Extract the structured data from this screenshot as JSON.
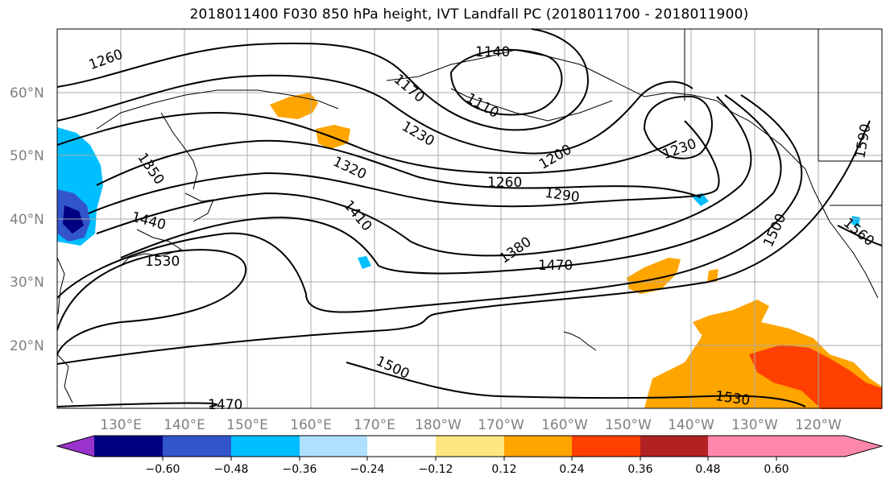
{
  "title": "2018011400 F030 850 hPa height, IVT Landfall PC (2018011700 - 2018011900)",
  "lat_labels": [
    "60°N",
    "50°N",
    "40°N",
    "30°N",
    "20°N"
  ],
  "lon_labels": [
    "130°E",
    "140°E",
    "150°E",
    "160°E",
    "170°E",
    "180°W",
    "170°W",
    "160°W",
    "150°W",
    "140°W",
    "130°W",
    "120°W"
  ],
  "contour_labels": [
    "1260",
    "1140",
    "1170",
    "1110",
    "1230",
    "1200",
    "1230",
    "1350",
    "1320",
    "1260",
    "1290",
    "1440",
    "1410",
    "1530",
    "1380",
    "1470",
    "1500",
    "1560",
    "1590",
    "1500",
    "1470",
    "1530"
  ],
  "colorbar": {
    "ticks": [
      "−0.60",
      "−0.48",
      "−0.36",
      "−0.24",
      "−0.12",
      "0.12",
      "0.24",
      "0.36",
      "0.48",
      "0.60"
    ],
    "colors": [
      "#9933cc",
      "#000080",
      "#3355cc",
      "#00bfff",
      "#b0e0ff",
      "#ffffff",
      "#ffe680",
      "#ffa500",
      "#ff4000",
      "#b22222",
      "#ff88aa"
    ]
  }
}
